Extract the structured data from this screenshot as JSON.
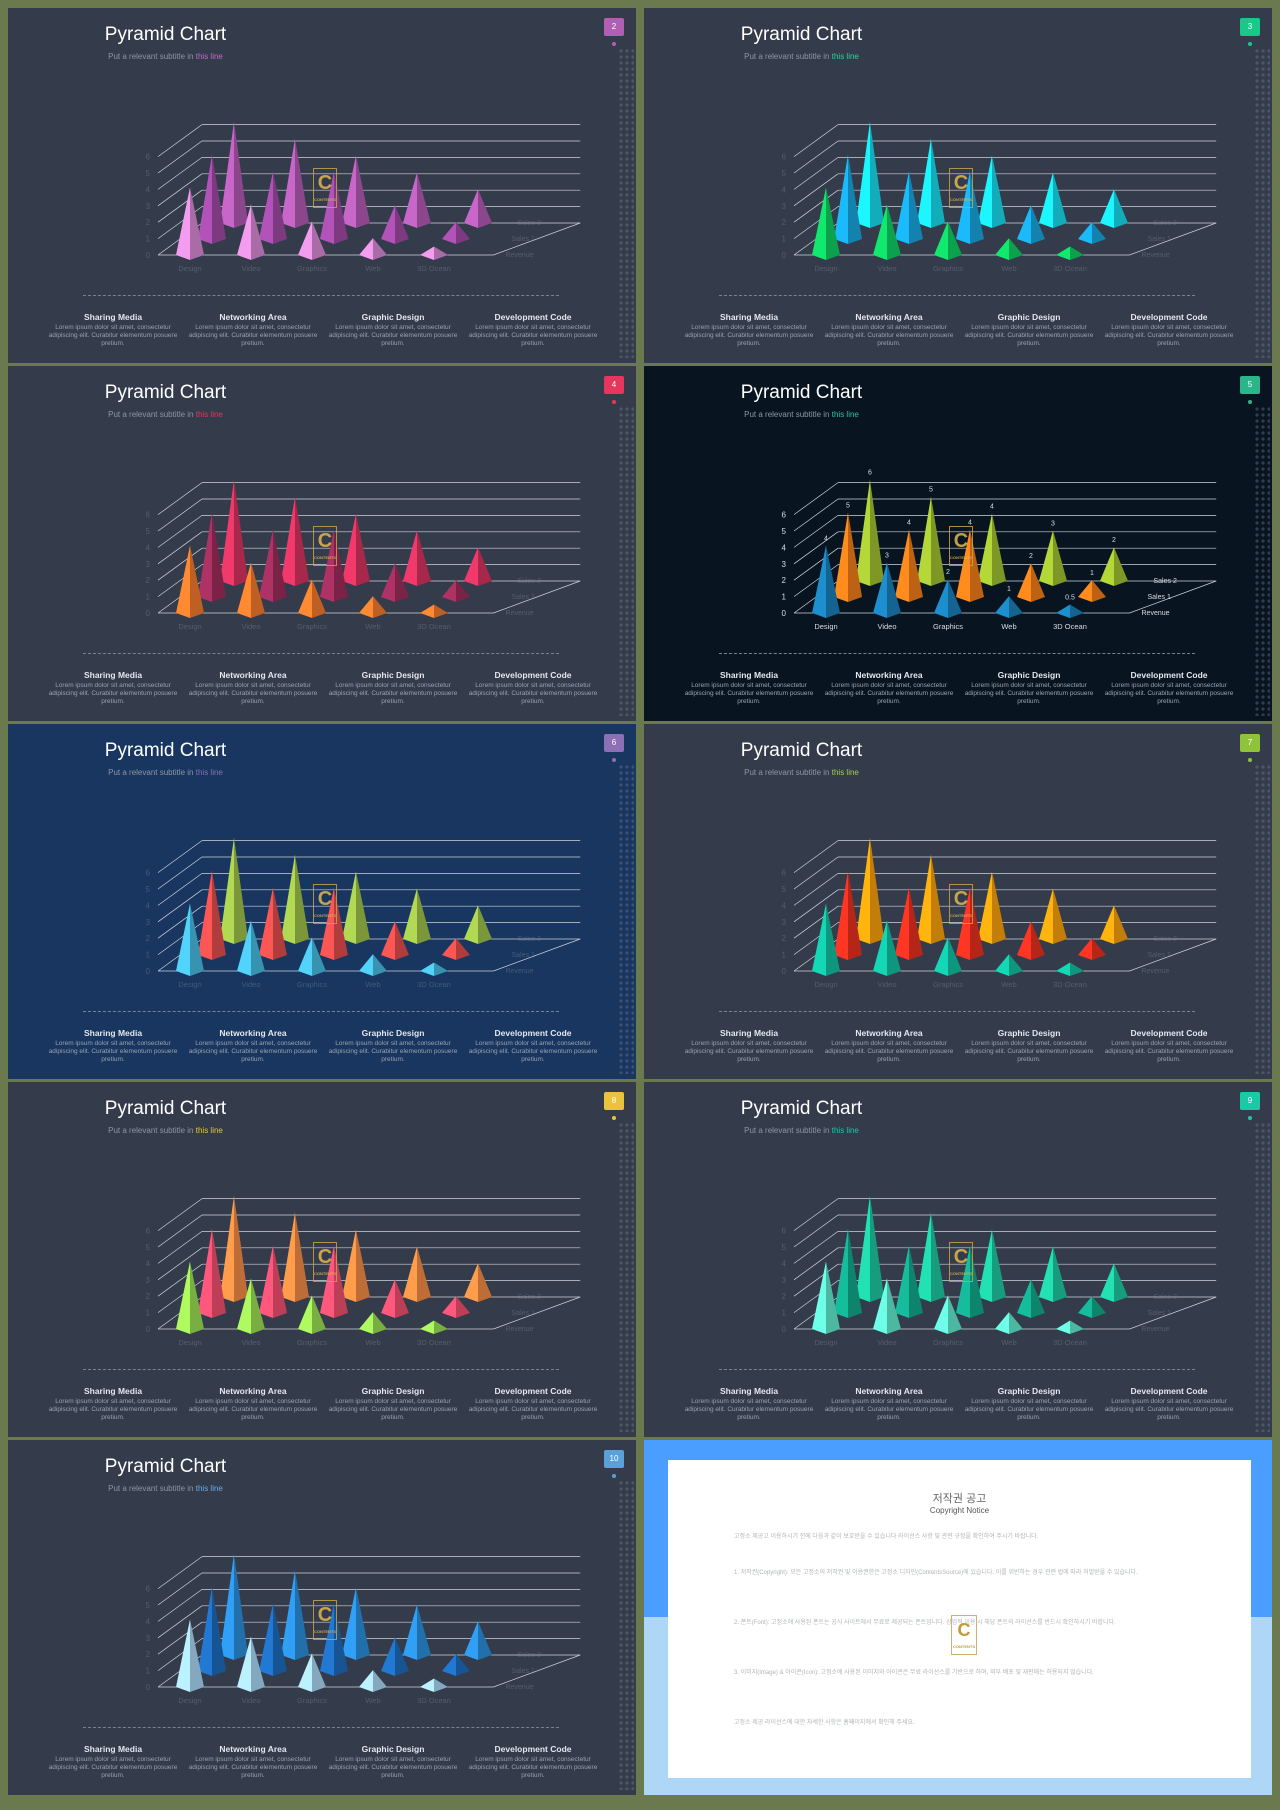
{
  "slides": [
    {
      "num": "2",
      "bg": "#343b4b",
      "badge": "#b15fb5",
      "hl": "#c06cc6",
      "subtitle_pre": "Put a relevant subtitle in",
      "subtitle_hl": "this line",
      "front": "#d98bd6",
      "mid": "#a04aa6",
      "back": "#b35bb4",
      "labels": false
    },
    {
      "num": "3",
      "bg": "#343b4b",
      "badge": "#18c98a",
      "hl": "#2bd59b",
      "subtitle_pre": "Put a relevant subtitle in",
      "subtitle_hl": "this line",
      "front": "#0fcf62",
      "mid": "#18a7e0",
      "back": "#18dcef",
      "labels": false
    },
    {
      "num": "4",
      "bg": "#343b4b",
      "badge": "#e7365e",
      "hl": "#e7365e",
      "subtitle_pre": "Put a relevant subtitle in",
      "subtitle_hl": "this line",
      "front": "#f47b2d",
      "mid": "#9c2d5a",
      "back": "#d83360",
      "labels": false
    },
    {
      "num": "5",
      "bg": "#081521",
      "badge": "#2bb58b",
      "hl": "#2bc4a0",
      "subtitle_pre": "Put a relevant subtitle in",
      "subtitle_hl": "this line",
      "front": "#1a7fb8",
      "mid": "#f27d1a",
      "back": "#a1c131",
      "labels": true
    },
    {
      "num": "6",
      "bg": "#18365f",
      "badge": "#8c6fb4",
      "hl": "#8c6fb4",
      "subtitle_pre": "Put a relevant subtitle in",
      "subtitle_hl": "this line",
      "front": "#48bce1",
      "mid": "#e14d4c",
      "back": "#9ec24a",
      "labels": false
    },
    {
      "num": "7",
      "bg": "#343b4b",
      "badge": "#8fc43a",
      "hl": "#9fd24a",
      "subtitle_pre": "Put a relevant subtitle in",
      "subtitle_hl": "this line",
      "front": "#12c1a2",
      "mid": "#e8301f",
      "back": "#f9a20c",
      "labels": false
    },
    {
      "num": "8",
      "bg": "#343b4b",
      "badge": "#eac33c",
      "hl": "#e9c53e",
      "subtitle_pre": "Put a relevant subtitle in",
      "subtitle_hl": "this line",
      "front": "#9bdf55",
      "mid": "#f24f6f",
      "back": "#f58c45",
      "labels": false
    },
    {
      "num": "9",
      "bg": "#343b4b",
      "badge": "#1cc9a7",
      "hl": "#1cc9a7",
      "subtitle_pre": "Put a relevant subtitle in",
      "subtitle_hl": "this line",
      "front": "#62ecd0",
      "mid": "#13a98b",
      "back": "#1ec9a0",
      "labels": false
    },
    {
      "num": "10",
      "bg": "#343b4b",
      "badge": "#5aa1d8",
      "hl": "#6aaee6",
      "subtitle_pre": "Put a relevant subtitle in",
      "subtitle_hl": "this line",
      "front": "#a8d8f6",
      "mid": "#1e6cbc",
      "back": "#2a8fdb",
      "labels": false
    }
  ],
  "slide_title": "Pyramid Chart",
  "chart_data": {
    "type": "bar",
    "categories": [
      "Design",
      "Video",
      "Graphics",
      "Web",
      "3D Ocean"
    ],
    "series": [
      {
        "name": "Revenue",
        "values": [
          4,
          3,
          2,
          1,
          0.5
        ]
      },
      {
        "name": "Sales 1",
        "values": [
          5,
          4,
          4,
          2,
          1
        ]
      },
      {
        "name": "Sales 2",
        "values": [
          6,
          5,
          4,
          3,
          2
        ]
      }
    ],
    "ylim": [
      0,
      6
    ],
    "y_ticks": [
      "0",
      "1",
      "2",
      "3",
      "4",
      "5",
      "6"
    ]
  },
  "columns": [
    {
      "heading": "Sharing Media",
      "body": "Lorem ipsum dolor sit amet, consectetur adipiscing elit. Curabitur elementum posuere pretium."
    },
    {
      "heading": "Networking Area",
      "body": "Lorem ipsum dolor sit amet, consectetur adipiscing elit. Curabitur elementum posuere pretium."
    },
    {
      "heading": "Graphic Design",
      "body": "Lorem ipsum dolor sit amet, consectetur adipiscing elit. Curabitur elementum posuere pretium."
    },
    {
      "heading": "Development Code",
      "body": "Lorem ipsum dolor sit amet, consectetur adipiscing elit. Curabitur elementum posuere pretium."
    }
  ],
  "logo_letter": "C",
  "logo_sub": "CONTENTS",
  "notice": {
    "title_kr": "저작권 공고",
    "title_en": "Copyright Notice",
    "para1": "고정소 제공고 이용하시기 전에 다음과 같이 보호받을 수 있습니다 라이선스 사항 및 관련 규정을 확인하여 주시기 바랍니다.",
    "para2": "1. 저작권(Copyright): 모든 고정소의 저작권 및 이용권한은 고정소 디자인(ContentsSource)에 있습니다. 이를 위반하는 경우 관련 법에 따라 처벌받을 수 있습니다.",
    "para3": "2. 폰트(Font): 고정소에 사용된 폰트는 공식 사이트에서 무료로 제공되는 폰트입니다. 상업적 이용 시 해당 폰트의 라이선스를 반드시 확인하시기 바랍니다.",
    "para4": "3. 이미지(Image) & 아이콘(Icon): 고정소에 사용된 이미지와 아이콘은 무료 라이선스를 기반으로 하며, 외부 배포 및 재판매는 허용되지 않습니다.",
    "para5": "고정소 제공 라이선스에 대한 자세한 사항은 홈페이지에서 확인해 주세요."
  }
}
